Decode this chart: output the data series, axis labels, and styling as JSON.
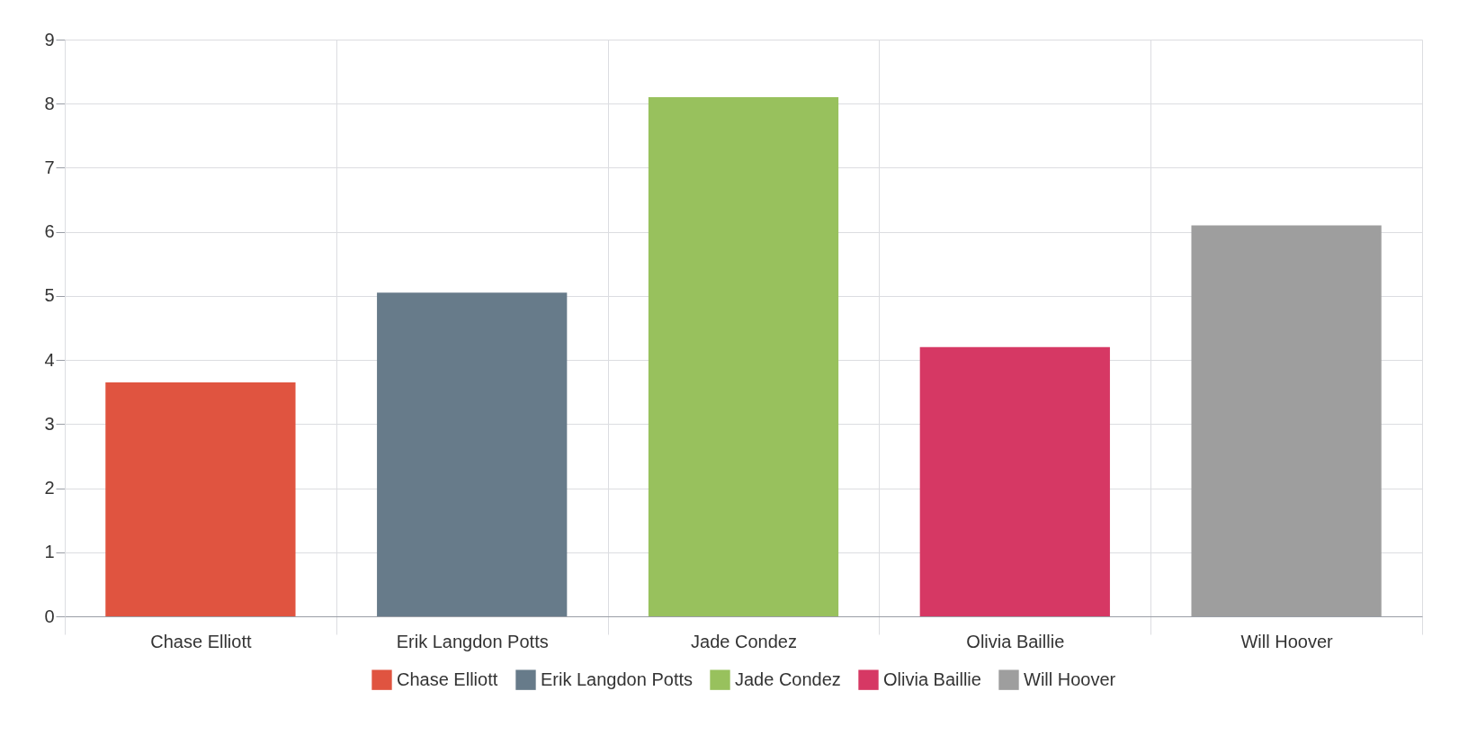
{
  "chart_data": {
    "type": "bar",
    "categories": [
      "Chase Elliott",
      "Erik Langdon Potts",
      "Jade Condez",
      "Olivia Baillie",
      "Will Hoover"
    ],
    "series": [
      {
        "name": "Chase Elliott",
        "color": "#e05440",
        "values": [
          3.65,
          null,
          null,
          null,
          null
        ]
      },
      {
        "name": "Erik Langdon Potts",
        "color": "#677b8a",
        "values": [
          null,
          5.05,
          null,
          null,
          null
        ]
      },
      {
        "name": "Jade Condez",
        "color": "#98c15d",
        "values": [
          null,
          null,
          8.1,
          null,
          null
        ]
      },
      {
        "name": "Olivia Baillie",
        "color": "#d63864",
        "values": [
          null,
          null,
          null,
          4.2,
          null
        ]
      },
      {
        "name": "Will Hoover",
        "color": "#9e9e9e",
        "values": [
          null,
          null,
          null,
          null,
          6.1
        ]
      }
    ],
    "ylim": [
      0,
      9
    ],
    "yticks": [
      0,
      1,
      2,
      3,
      4,
      5,
      6,
      7,
      8,
      9
    ],
    "grid": true,
    "legend": "bottom"
  }
}
